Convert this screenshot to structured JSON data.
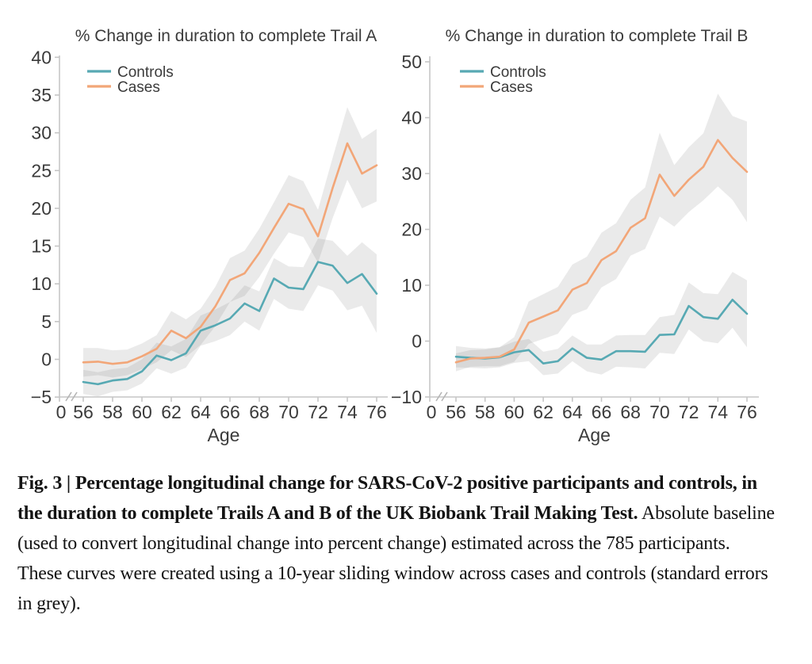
{
  "figure_label": "Fig. 3",
  "caption": {
    "bold": "Fig. 3 | Percentage longitudinal change for SARS-CoV-2 positive participants and controls, in the duration to complete Trails A and B of the UK Biobank Trail Making Test.",
    "regular": " Absolute baseline (used to convert longitudinal change into percent change) estimated across the 785 participants. These curves were created using a 10-year sliding window across cases and controls (standard errors in grey)."
  },
  "colors": {
    "controls": "#57A9B3",
    "cases": "#F2A678",
    "se_band": "#E8E8E8",
    "axis": "#c6c6c6",
    "text": "#3b3b3b"
  },
  "chart_data": [
    {
      "type": "line",
      "title": "% Change in duration to complete Trail A",
      "xlabel": "Age",
      "ylabel": "",
      "x_axis_origin_label": "0",
      "axis_break": true,
      "ylim": [
        -5,
        40
      ],
      "yticks": [
        -5,
        0,
        5,
        10,
        15,
        20,
        25,
        30,
        35,
        40
      ],
      "xticks": [
        56,
        58,
        60,
        62,
        64,
        66,
        68,
        70,
        72,
        74,
        76
      ],
      "legend_position": "top-left",
      "band_note": "standard errors in grey",
      "x": [
        56,
        57,
        58,
        59,
        60,
        61,
        62,
        63,
        64,
        65,
        66,
        67,
        68,
        69,
        70,
        71,
        72,
        73,
        74,
        75,
        76
      ],
      "series": [
        {
          "name": "Controls",
          "color": "#57A9B3",
          "values": [
            -3.0,
            -3.3,
            -2.8,
            -2.6,
            -1.6,
            0.5,
            -0.1,
            0.8,
            3.8,
            4.5,
            5.4,
            7.4,
            6.4,
            10.7,
            9.5,
            9.3,
            12.9,
            12.4,
            10.1,
            11.3,
            8.7
          ],
          "se": [
            1.6,
            1.6,
            1.5,
            1.5,
            1.6,
            1.7,
            1.8,
            1.9,
            2.0,
            2.1,
            2.2,
            2.4,
            2.6,
            2.7,
            2.8,
            2.9,
            3.1,
            3.3,
            3.6,
            4.2,
            5.2
          ]
        },
        {
          "name": "Cases",
          "color": "#F2A678",
          "values": [
            -0.4,
            -0.3,
            -0.6,
            -0.4,
            0.4,
            1.4,
            3.8,
            2.8,
            4.3,
            7.0,
            10.5,
            11.4,
            14.1,
            17.4,
            20.6,
            19.9,
            16.3,
            22.7,
            28.6,
            24.6,
            25.7
          ],
          "se": [
            1.9,
            1.8,
            1.8,
            1.7,
            1.7,
            1.8,
            2.6,
            2.5,
            2.4,
            2.6,
            2.9,
            3.0,
            3.2,
            3.4,
            3.8,
            3.7,
            3.5,
            4.0,
            4.8,
            4.6,
            4.8
          ]
        }
      ]
    },
    {
      "type": "line",
      "title": "% Change in duration to complete Trail B",
      "xlabel": "Age",
      "ylabel": "",
      "x_axis_origin_label": "0",
      "axis_break": true,
      "ylim": [
        -10,
        50
      ],
      "yticks": [
        -10,
        0,
        10,
        20,
        30,
        40,
        50
      ],
      "xticks": [
        56,
        58,
        60,
        62,
        64,
        66,
        68,
        70,
        72,
        74,
        76
      ],
      "legend_position": "top-left",
      "band_note": "standard errors in grey",
      "x": [
        56,
        57,
        58,
        59,
        60,
        61,
        62,
        63,
        64,
        65,
        66,
        67,
        68,
        69,
        70,
        71,
        72,
        73,
        74,
        75,
        76
      ],
      "series": [
        {
          "name": "Controls",
          "color": "#57A9B3",
          "values": [
            -2.8,
            -3.0,
            -3.1,
            -2.9,
            -2.0,
            -1.6,
            -4.0,
            -3.6,
            -1.3,
            -3.0,
            -3.3,
            -1.8,
            -1.8,
            -1.9,
            1.1,
            1.2,
            6.3,
            4.3,
            4.0,
            7.4,
            4.9
          ],
          "se": [
            1.9,
            1.8,
            1.8,
            1.8,
            1.9,
            2.0,
            2.1,
            2.2,
            2.3,
            2.4,
            2.7,
            2.8,
            2.9,
            3.0,
            3.2,
            3.5,
            4.2,
            4.3,
            4.4,
            5.0,
            6.0
          ]
        },
        {
          "name": "Cases",
          "color": "#F2A678",
          "values": [
            -3.8,
            -3.1,
            -3.0,
            -2.8,
            -1.5,
            3.3,
            4.4,
            5.5,
            9.2,
            10.4,
            14.5,
            16.1,
            20.3,
            22.0,
            29.8,
            26.0,
            28.9,
            31.2,
            36.0,
            32.8,
            30.3
          ],
          "se": [
            1.6,
            1.5,
            1.5,
            1.7,
            2.2,
            3.8,
            4.0,
            4.2,
            4.5,
            4.7,
            4.9,
            5.0,
            5.0,
            5.5,
            7.5,
            5.5,
            5.8,
            6.0,
            8.3,
            7.5,
            9.0
          ]
        }
      ]
    }
  ]
}
